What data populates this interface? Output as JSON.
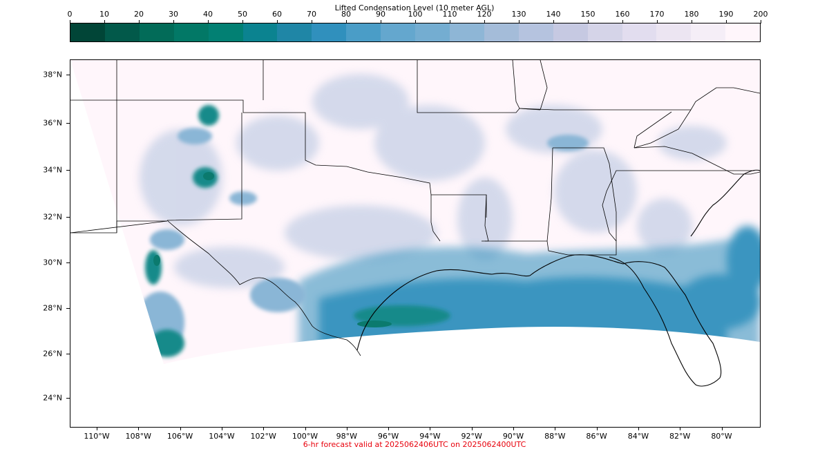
{
  "colorbar": {
    "title": "Lifted Condensation Level (10 meter AGL)",
    "ticks": [
      "0",
      "10",
      "20",
      "30",
      "40",
      "50",
      "60",
      "70",
      "80",
      "90",
      "100",
      "110",
      "120",
      "130",
      "140",
      "150",
      "160",
      "170",
      "180",
      "190",
      "200"
    ],
    "colors": [
      "#014537",
      "#02594a",
      "#026b58",
      "#027866",
      "#028073",
      "#0b8390",
      "#1f86a6",
      "#3090bd",
      "#4a9dc7",
      "#64a7ce",
      "#74add1",
      "#8eb6d6",
      "#a4bcd9",
      "#b5c3df",
      "#c6c9e2",
      "#d5d4e8",
      "#e2ddef",
      "#ece5f2",
      "#f5eef7",
      "#fff6fb"
    ]
  },
  "map": {
    "lat_labels": [
      "38°N",
      "36°N",
      "34°N",
      "32°N",
      "30°N",
      "28°N",
      "26°N",
      "24°N"
    ],
    "lon_labels": [
      "110°W",
      "108°W",
      "106°W",
      "104°W",
      "102°W",
      "100°W",
      "98°W",
      "96°W",
      "94°W",
      "92°W",
      "90°W",
      "88°W",
      "86°W",
      "84°W",
      "82°W",
      "80°W"
    ],
    "palette": {
      "background": "#fff6fb",
      "light": "#c6d0e6",
      "mid": "#8ab6d6",
      "gulf": "#3a95c0",
      "teal": "#178a8a",
      "deep": "#0b7a6e",
      "border": "#000000"
    }
  },
  "footer": "6-hr forecast valid at 2025062406UTC on 2025062400UTC"
}
